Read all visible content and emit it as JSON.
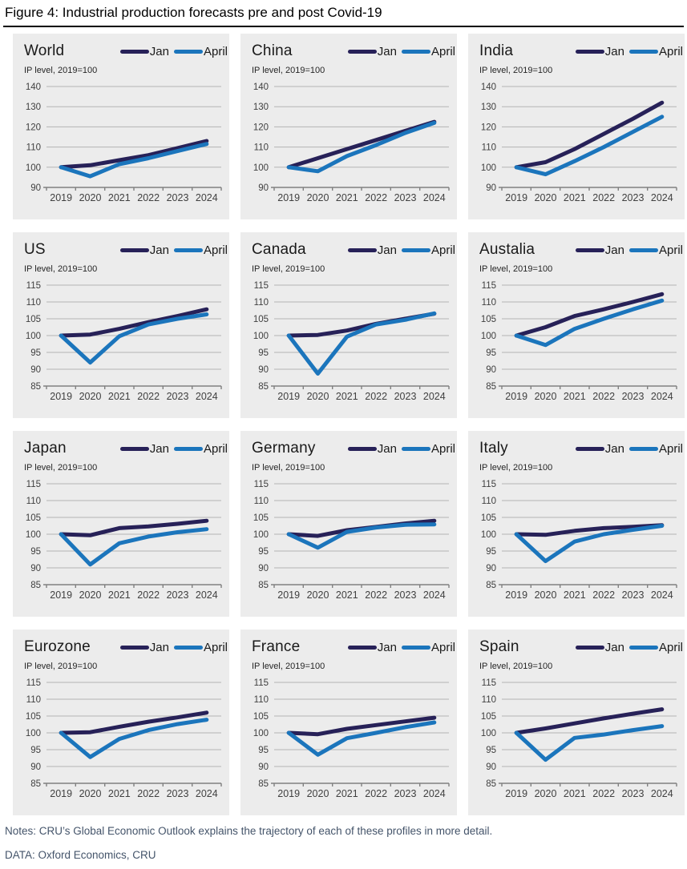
{
  "figure": {
    "title": "Figure 4: Industrial production forecasts pre and post Covid-19",
    "notes": "Notes: CRU’s Global Economic Outlook explains the trajectory of each of these profiles in more detail.",
    "source": "DATA: Oxford Economics, CRU"
  },
  "colors": {
    "jan_line": "#272158",
    "april_line": "#1B75BC",
    "panel_bg": "#ECECEC",
    "gridline": "#B3B3B3",
    "axis": "#808080",
    "tick_text": "#404040",
    "notes_text": "#44546A"
  },
  "chart_data": [
    {
      "type": "line",
      "title": "World",
      "subtitle": "IP level, 2019=100",
      "x": [
        2019,
        2020,
        2021,
        2022,
        2023,
        2024
      ],
      "ylim": [
        90,
        140
      ],
      "ystep": 10,
      "grid": true,
      "legend": [
        "Jan",
        "April"
      ],
      "legend_position": "top-right",
      "series": [
        {
          "name": "Jan",
          "color": "#272158",
          "values": [
            100,
            101,
            103.5,
            106,
            109.5,
            113
          ]
        },
        {
          "name": "April",
          "color": "#1B75BC",
          "values": [
            100,
            95.5,
            101.5,
            104.5,
            108,
            111.5
          ]
        }
      ]
    },
    {
      "type": "line",
      "title": "China",
      "subtitle": "IP level, 2019=100",
      "x": [
        2019,
        2020,
        2021,
        2022,
        2023,
        2024
      ],
      "ylim": [
        90,
        140
      ],
      "ystep": 10,
      "grid": true,
      "legend": [
        "Jan",
        "April"
      ],
      "legend_position": "top-right",
      "series": [
        {
          "name": "Jan",
          "color": "#272158",
          "values": [
            100,
            104.5,
            109,
            113.5,
            118,
            122.5
          ]
        },
        {
          "name": "April",
          "color": "#1B75BC",
          "values": [
            100,
            98,
            105.5,
            111,
            117,
            122
          ]
        }
      ]
    },
    {
      "type": "line",
      "title": "India",
      "subtitle": "IP level, 2019=100",
      "x": [
        2019,
        2020,
        2021,
        2022,
        2023,
        2024
      ],
      "ylim": [
        90,
        140
      ],
      "ystep": 10,
      "grid": true,
      "legend": [
        "Jan",
        "April"
      ],
      "legend_position": "top-right",
      "series": [
        {
          "name": "Jan",
          "color": "#272158",
          "values": [
            100,
            102.5,
            109,
            116.5,
            124,
            132
          ]
        },
        {
          "name": "April",
          "color": "#1B75BC",
          "values": [
            100,
            96.5,
            103,
            110,
            117.5,
            125
          ]
        }
      ]
    },
    {
      "type": "line",
      "title": "US",
      "subtitle": "IP level, 2019=100",
      "x": [
        2019,
        2020,
        2021,
        2022,
        2023,
        2024
      ],
      "ylim": [
        85,
        115
      ],
      "ystep": 5,
      "grid": true,
      "legend": [
        "Jan",
        "April"
      ],
      "legend_position": "top-right",
      "series": [
        {
          "name": "Jan",
          "color": "#272158",
          "values": [
            100,
            100.3,
            102,
            104,
            105.8,
            107.8
          ]
        },
        {
          "name": "April",
          "color": "#1B75BC",
          "values": [
            100,
            92,
            99.8,
            103.3,
            105,
            106.3
          ]
        }
      ]
    },
    {
      "type": "line",
      "title": "Canada",
      "subtitle": "IP level, 2019=100",
      "x": [
        2019,
        2020,
        2021,
        2022,
        2023,
        2024
      ],
      "ylim": [
        85,
        115
      ],
      "ystep": 5,
      "grid": true,
      "legend": [
        "Jan",
        "April"
      ],
      "legend_position": "top-right",
      "series": [
        {
          "name": "Jan",
          "color": "#272158",
          "values": [
            100,
            100.2,
            101.5,
            103.5,
            105,
            106.5
          ]
        },
        {
          "name": "April",
          "color": "#1B75BC",
          "values": [
            100,
            88.7,
            99.7,
            103.3,
            104.7,
            106.6
          ]
        }
      ]
    },
    {
      "type": "line",
      "title": "Austalia",
      "subtitle": "IP level, 2019=100",
      "x": [
        2019,
        2020,
        2021,
        2022,
        2023,
        2024
      ],
      "ylim": [
        85,
        115
      ],
      "ystep": 5,
      "grid": true,
      "legend": [
        "Jan",
        "April"
      ],
      "legend_position": "top-right",
      "series": [
        {
          "name": "Jan",
          "color": "#272158",
          "values": [
            100,
            102.5,
            105.8,
            107.8,
            110,
            112.3
          ]
        },
        {
          "name": "April",
          "color": "#1B75BC",
          "values": [
            100,
            97.2,
            102,
            105,
            107.8,
            110.4
          ]
        }
      ]
    },
    {
      "type": "line",
      "title": "Japan",
      "subtitle": "IP level, 2019=100",
      "x": [
        2019,
        2020,
        2021,
        2022,
        2023,
        2024
      ],
      "ylim": [
        85,
        115
      ],
      "ystep": 5,
      "grid": true,
      "legend": [
        "Jan",
        "April"
      ],
      "legend_position": "top-right",
      "series": [
        {
          "name": "Jan",
          "color": "#272158",
          "values": [
            100,
            99.7,
            101.8,
            102.3,
            103.1,
            104
          ]
        },
        {
          "name": "April",
          "color": "#1B75BC",
          "values": [
            100,
            91,
            97.3,
            99.3,
            100.6,
            101.5
          ]
        }
      ]
    },
    {
      "type": "line",
      "title": "Germany",
      "subtitle": "IP level, 2019=100",
      "x": [
        2019,
        2020,
        2021,
        2022,
        2023,
        2024
      ],
      "ylim": [
        85,
        115
      ],
      "ystep": 5,
      "grid": true,
      "legend": [
        "Jan",
        "April"
      ],
      "legend_position": "top-right",
      "series": [
        {
          "name": "Jan",
          "color": "#272158",
          "values": [
            100,
            99.5,
            101.2,
            102.2,
            103.2,
            104
          ]
        },
        {
          "name": "April",
          "color": "#1B75BC",
          "values": [
            100,
            96,
            100.7,
            102,
            102.8,
            102.9
          ]
        }
      ]
    },
    {
      "type": "line",
      "title": "Italy",
      "subtitle": "IP level, 2019=100",
      "x": [
        2019,
        2020,
        2021,
        2022,
        2023,
        2024
      ],
      "ylim": [
        85,
        115
      ],
      "ystep": 5,
      "grid": true,
      "legend": [
        "Jan",
        "April"
      ],
      "legend_position": "top-right",
      "series": [
        {
          "name": "Jan",
          "color": "#272158",
          "values": [
            100,
            99.8,
            101,
            101.8,
            102.2,
            102.7
          ]
        },
        {
          "name": "April",
          "color": "#1B75BC",
          "values": [
            100,
            92,
            97.8,
            100,
            101.3,
            102.5
          ]
        }
      ]
    },
    {
      "type": "line",
      "title": "Eurozone",
      "subtitle": "IP level, 2019=100",
      "x": [
        2019,
        2020,
        2021,
        2022,
        2023,
        2024
      ],
      "ylim": [
        85,
        115
      ],
      "ystep": 5,
      "grid": true,
      "legend": [
        "Jan",
        "April"
      ],
      "legend_position": "top-right",
      "series": [
        {
          "name": "Jan",
          "color": "#272158",
          "values": [
            100,
            100.2,
            101.8,
            103.3,
            104.6,
            106
          ]
        },
        {
          "name": "April",
          "color": "#1B75BC",
          "values": [
            100,
            92.8,
            98.2,
            100.8,
            102.6,
            103.9
          ]
        }
      ]
    },
    {
      "type": "line",
      "title": "France",
      "subtitle": "IP level, 2019=100",
      "x": [
        2019,
        2020,
        2021,
        2022,
        2023,
        2024
      ],
      "ylim": [
        85,
        115
      ],
      "ystep": 5,
      "grid": true,
      "legend": [
        "Jan",
        "April"
      ],
      "legend_position": "top-right",
      "series": [
        {
          "name": "Jan",
          "color": "#272158",
          "values": [
            100,
            99.6,
            101.2,
            102.3,
            103.4,
            104.5
          ]
        },
        {
          "name": "April",
          "color": "#1B75BC",
          "values": [
            100,
            93.5,
            98.4,
            100,
            101.7,
            103.1
          ]
        }
      ]
    },
    {
      "type": "line",
      "title": "Spain",
      "subtitle": "IP level, 2019=100",
      "x": [
        2019,
        2020,
        2021,
        2022,
        2023,
        2024
      ],
      "ylim": [
        85,
        115
      ],
      "ystep": 5,
      "grid": true,
      "legend": [
        "Jan",
        "April"
      ],
      "legend_position": "top-right",
      "series": [
        {
          "name": "Jan",
          "color": "#272158",
          "values": [
            100,
            101.3,
            102.8,
            104.3,
            105.7,
            107
          ]
        },
        {
          "name": "April",
          "color": "#1B75BC",
          "values": [
            100,
            92,
            98.5,
            99.5,
            100.8,
            102
          ]
        }
      ]
    }
  ]
}
